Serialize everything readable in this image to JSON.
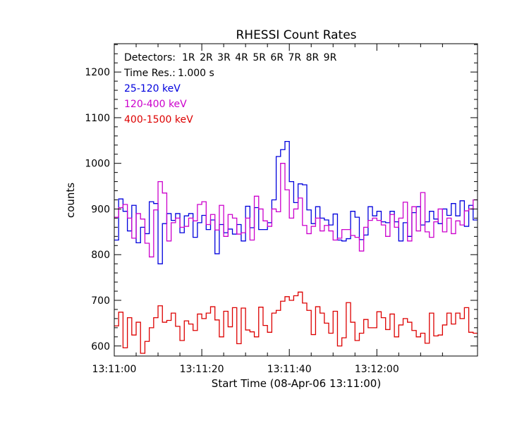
{
  "chart_data": {
    "type": "line",
    "step": true,
    "title": "RHESSI Count Rates",
    "xlabel": "Start Time (08-Apr-06 13:11:00)",
    "ylabel": "counts",
    "x_unit": "seconds",
    "xlim": [
      0,
      83
    ],
    "ylim": [
      578,
      1262
    ],
    "y_ticks": [
      600,
      700,
      800,
      900,
      1000,
      1100,
      1200
    ],
    "x_ticks": [
      {
        "value": 0,
        "label": "13:11:00"
      },
      {
        "value": 20,
        "label": "13:11:20"
      },
      {
        "value": 40,
        "label": "13:11:40"
      },
      {
        "value": 60,
        "label": "13:12:00"
      }
    ],
    "annotations": [
      {
        "label": "Detectors:",
        "text": "1R 2R 3R 4R 5R 6R 7R 8R 9R",
        "color": "#000000"
      },
      {
        "label": "Time Res.:",
        "text": "1.000 s",
        "color": "#000000"
      }
    ],
    "legend_position": "top-left",
    "series": [
      {
        "name": "25-120 keV",
        "color": "#0000dd",
        "values": [
          832,
          922,
          895,
          852,
          908,
          826,
          860,
          846,
          916,
          912,
          780,
          868,
          890,
          875,
          890,
          848,
          885,
          890,
          838,
          870,
          886,
          855,
          876,
          802,
          866,
          848,
          856,
          845,
          866,
          830,
          906,
          859,
          903,
          855,
          855,
          870,
          920,
          1015,
          1030,
          1048,
          960,
          914,
          955,
          953,
          898,
          868,
          905,
          880,
          876,
          865,
          889,
          832,
          830,
          835,
          895,
          882,
          833,
          843,
          905,
          885,
          895,
          872,
          870,
          895,
          872,
          830,
          870,
          840,
          892,
          905,
          865,
          872,
          895,
          878,
          868,
          900,
          886,
          912,
          885,
          918,
          862,
          908,
          876
        ]
      },
      {
        "name": "120-400 keV",
        "color": "#cc00cc",
        "values": [
          882,
          903,
          910,
          880,
          836,
          890,
          878,
          825,
          795,
          898,
          960,
          935,
          830,
          870,
          880,
          860,
          862,
          880,
          874,
          910,
          916,
          866,
          888,
          854,
          908,
          840,
          888,
          880,
          845,
          848,
          880,
          832,
          928,
          900,
          874,
          862,
          900,
          894,
          1000,
          942,
          880,
          900,
          924,
          864,
          846,
          862,
          880,
          852,
          864,
          852,
          832,
          836,
          855,
          855,
          842,
          838,
          808,
          860,
          875,
          880,
          875,
          865,
          840,
          888,
          860,
          880,
          915,
          830,
          905,
          852,
          936,
          850,
          838,
          872,
          900,
          850,
          880,
          846,
          874,
          865,
          896,
          900,
          920
        ]
      },
      {
        "name": "400-1500 keV",
        "color": "#dd0000",
        "values": [
          644,
          674,
          596,
          662,
          624,
          652,
          584,
          610,
          640,
          662,
          688,
          652,
          656,
          672,
          643,
          612,
          655,
          648,
          634,
          670,
          660,
          672,
          686,
          657,
          620,
          676,
          642,
          684,
          605,
          683,
          635,
          631,
          620,
          685,
          645,
          630,
          672,
          678,
          698,
          708,
          700,
          710,
          718,
          694,
          678,
          625,
          686,
          672,
          650,
          628,
          676,
          600,
          618,
          695,
          652,
          612,
          628,
          658,
          640,
          640,
          675,
          662,
          636,
          670,
          620,
          646,
          660,
          652,
          634,
          620,
          628,
          606,
          672,
          622,
          624,
          646,
          672,
          648,
          672,
          660,
          684,
          630,
          628
        ]
      }
    ]
  }
}
